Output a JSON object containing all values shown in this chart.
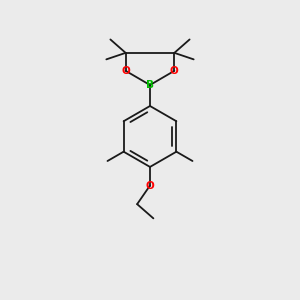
{
  "background_color": "#ebebeb",
  "bond_color": "#1a1a1a",
  "oxygen_color": "#ff0000",
  "boron_color": "#00bb00",
  "line_width": 1.3,
  "figsize": [
    3.0,
    3.0
  ],
  "dpi": 100,
  "xlim": [
    0.2,
    0.8
  ],
  "ylim": [
    0.08,
    0.95
  ]
}
